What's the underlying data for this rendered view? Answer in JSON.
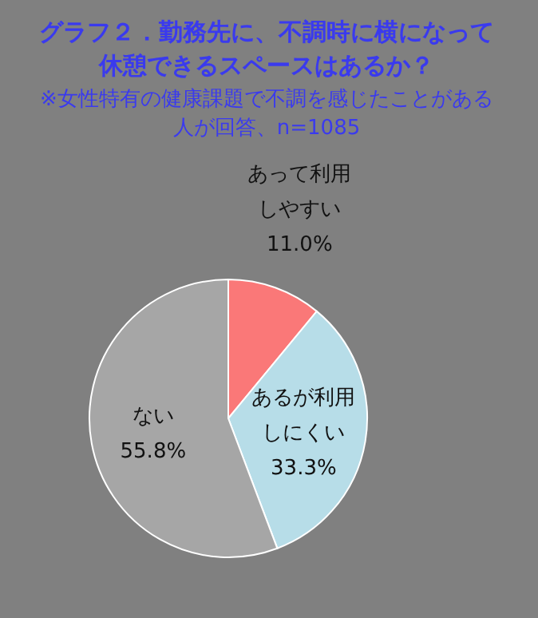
{
  "chart_data": {
    "type": "pie",
    "title": "グラフ２．勤務先に、不調時に横になって休憩できるスペースはあるか？",
    "subtitle": "※女性特有の健康課題で不調を感じたことがある人が回答、n=1085",
    "categories": [
      "あって利用しやすい",
      "あるが利用しにくい",
      "ない"
    ],
    "values": [
      11.0,
      33.3,
      55.8
    ],
    "colors": [
      "#fa7878",
      "#b7dde8",
      "#a6a6a6"
    ],
    "value_labels": [
      "11.0%",
      "33.3%",
      "55.8%"
    ]
  }
}
